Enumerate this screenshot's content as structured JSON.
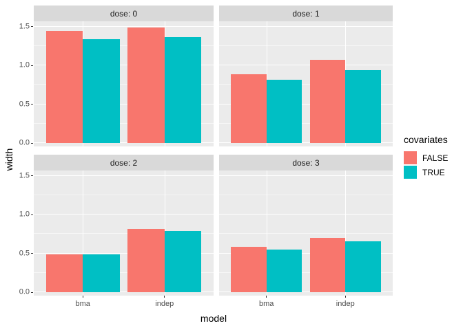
{
  "figure": {
    "background": "#FFFFFF",
    "panel_bg": "#EBEBEB",
    "strip_bg": "#D9D9D9",
    "grid_color": "#FFFFFF",
    "axis_text_color": "#4D4D4D",
    "tick_color": "#333333"
  },
  "chart_data": {
    "type": "bar",
    "title": "",
    "xlabel": "model",
    "ylabel": "width",
    "categories": [
      "bma",
      "indep"
    ],
    "y_ticks": [
      0.0,
      0.5,
      1.0,
      1.5
    ],
    "y_minor_ticks": [
      0.25,
      0.75,
      1.25
    ],
    "ylim": [
      0,
      1.56
    ],
    "grid": "on",
    "facet_variable": "dose",
    "legend": {
      "title": "covariates",
      "position": "right",
      "entries": [
        {
          "label": "FALSE",
          "color": "#F8766D"
        },
        {
          "label": "TRUE",
          "color": "#00BFC4"
        }
      ]
    },
    "facets": [
      {
        "label": "dose: 0",
        "series": [
          {
            "name": "FALSE",
            "values": [
              1.45,
              1.49
            ]
          },
          {
            "name": "TRUE",
            "values": [
              1.34,
              1.37
            ]
          }
        ]
      },
      {
        "label": "dose: 1",
        "series": [
          {
            "name": "FALSE",
            "values": [
              0.89,
              1.07
            ]
          },
          {
            "name": "TRUE",
            "values": [
              0.82,
              0.94
            ]
          }
        ]
      },
      {
        "label": "dose: 2",
        "series": [
          {
            "name": "FALSE",
            "values": [
              0.49,
              0.82
            ]
          },
          {
            "name": "TRUE",
            "values": [
              0.49,
              0.79
            ]
          }
        ]
      },
      {
        "label": "dose: 3",
        "series": [
          {
            "name": "FALSE",
            "values": [
              0.59,
              0.7
            ]
          },
          {
            "name": "TRUE",
            "values": [
              0.55,
              0.66
            ]
          }
        ]
      }
    ]
  }
}
